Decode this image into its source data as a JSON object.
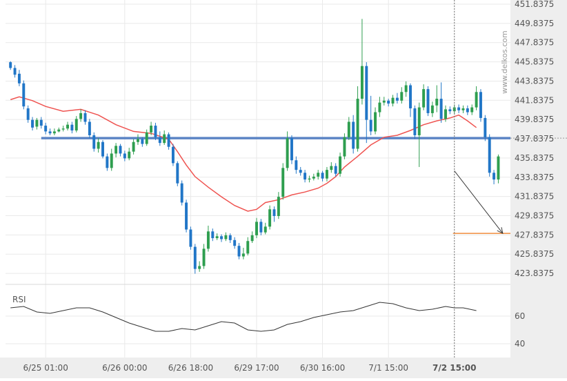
{
  "chart_data": {
    "type": "candlestick",
    "watermark": "www.delkos.com",
    "colors": {
      "up": "#2e9e4f",
      "down": "#2176c7",
      "ma": "#ef5350",
      "level": "#5b84c4",
      "target": "#f08c3c",
      "arrow": "#3a3a3a",
      "rsi": "#333333",
      "grid": "#e9e9e9",
      "axis_text": "#555555",
      "plot_bg": "#ffffff",
      "axis_bg": "#eeeeee"
    },
    "price_axis": {
      "min": 422.8375,
      "max": 451.8375,
      "ticks": [
        "451.8375",
        "449.8375",
        "447.8375",
        "445.8375",
        "443.8375",
        "441.8375",
        "439.8375",
        "437.8375",
        "435.8375",
        "433.8375",
        "431.8375",
        "429.8375",
        "427.8375",
        "425.8375",
        "423.8375"
      ]
    },
    "time_axis": {
      "labels": [
        "6/25 01:00",
        "6/26 00:00",
        "6/26 18:00",
        "6/29 17:00",
        "6/30 16:00",
        "7/1 15:00",
        "7/2 15:00"
      ],
      "label_index": [
        8,
        26,
        41,
        56,
        71,
        86,
        101
      ]
    },
    "support_level": 437.9,
    "target_level": 428.0,
    "forecast_arrow": {
      "from_index": 101,
      "from_price": 434.5,
      "to_index": 112,
      "to_price": 428.0
    },
    "current_index": 101,
    "candles": [
      [
        445.8,
        445.2,
        445.9,
        445.0
      ],
      [
        445.2,
        444.5,
        445.5,
        444.2
      ],
      [
        444.6,
        443.6,
        445.0,
        443.3
      ],
      [
        443.6,
        441.2,
        443.9,
        440.9
      ],
      [
        441.0,
        439.8,
        441.3,
        439.5
      ],
      [
        439.8,
        439.0,
        440.1,
        438.7
      ],
      [
        439.1,
        439.8,
        440.0,
        438.8
      ],
      [
        439.8,
        439.2,
        440.1,
        438.9
      ],
      [
        439.2,
        438.6,
        439.5,
        438.3
      ],
      [
        438.6,
        438.4,
        438.9,
        438.2
      ],
      [
        438.4,
        438.6,
        438.9,
        438.2
      ],
      [
        438.6,
        438.8,
        439.0,
        438.5
      ],
      [
        438.8,
        438.9,
        439.2,
        438.6
      ],
      [
        438.9,
        439.3,
        439.6,
        438.7
      ],
      [
        439.3,
        438.7,
        439.6,
        438.4
      ],
      [
        438.7,
        439.9,
        440.2,
        438.5
      ],
      [
        439.9,
        440.5,
        440.9,
        439.6
      ],
      [
        440.5,
        439.6,
        440.8,
        439.3
      ],
      [
        439.6,
        438.2,
        439.9,
        437.9
      ],
      [
        438.2,
        436.8,
        438.5,
        436.5
      ],
      [
        436.8,
        437.5,
        437.9,
        436.4
      ],
      [
        437.5,
        436.0,
        437.7,
        435.8
      ],
      [
        436.0,
        434.8,
        436.3,
        434.5
      ],
      [
        434.8,
        436.3,
        436.8,
        434.5
      ],
      [
        436.3,
        437.1,
        437.4,
        435.9
      ],
      [
        437.1,
        436.3,
        437.3,
        436.0
      ],
      [
        436.3,
        435.8,
        436.6,
        435.5
      ],
      [
        435.8,
        436.5,
        436.9,
        435.6
      ],
      [
        436.5,
        437.5,
        437.8,
        436.2
      ],
      [
        437.5,
        437.8,
        438.3,
        437.2
      ],
      [
        437.8,
        437.3,
        438.0,
        437.0
      ],
      [
        437.3,
        438.5,
        438.8,
        437.1
      ],
      [
        438.5,
        439.2,
        439.6,
        438.2
      ],
      [
        439.2,
        438.0,
        439.5,
        437.7
      ],
      [
        438.0,
        437.4,
        438.6,
        437.1
      ],
      [
        437.4,
        438.3,
        438.7,
        437.2
      ],
      [
        438.3,
        437.0,
        438.5,
        436.7
      ],
      [
        437.0,
        435.3,
        437.3,
        435.0
      ],
      [
        435.3,
        433.2,
        435.5,
        432.9
      ],
      [
        433.2,
        431.2,
        433.5,
        430.9
      ],
      [
        431.2,
        428.4,
        431.5,
        428.1
      ],
      [
        428.4,
        426.6,
        428.7,
        426.3
      ],
      [
        426.6,
        424.3,
        426.9,
        423.8
      ],
      [
        424.3,
        424.6,
        425.1,
        424.0
      ],
      [
        424.6,
        426.4,
        426.9,
        424.3
      ],
      [
        426.4,
        428.2,
        428.8,
        426.1
      ],
      [
        428.2,
        427.5,
        428.5,
        427.2
      ],
      [
        427.5,
        427.7,
        428.0,
        427.3
      ],
      [
        427.7,
        427.4,
        427.9,
        427.1
      ],
      [
        427.4,
        427.8,
        428.1,
        427.2
      ],
      [
        427.8,
        427.3,
        428.0,
        427.0
      ],
      [
        427.3,
        426.7,
        427.6,
        426.4
      ],
      [
        426.7,
        425.6,
        427.0,
        425.3
      ],
      [
        425.6,
        425.9,
        426.5,
        425.3
      ],
      [
        425.9,
        427.2,
        427.6,
        425.7
      ],
      [
        427.2,
        427.8,
        428.2,
        427.0
      ],
      [
        427.8,
        429.2,
        429.6,
        427.5
      ],
      [
        429.2,
        428.1,
        429.5,
        427.8
      ],
      [
        428.1,
        428.7,
        429.1,
        427.9
      ],
      [
        428.7,
        430.5,
        430.9,
        428.4
      ],
      [
        430.5,
        429.8,
        430.8,
        429.2
      ],
      [
        429.8,
        431.8,
        432.3,
        429.5
      ],
      [
        431.8,
        434.8,
        435.3,
        431.5
      ],
      [
        434.8,
        437.9,
        438.6,
        434.5
      ],
      [
        437.9,
        435.6,
        438.2,
        435.2
      ],
      [
        435.6,
        434.6,
        436.0,
        434.2
      ],
      [
        434.6,
        434.3,
        434.9,
        434.0
      ],
      [
        434.3,
        433.6,
        434.6,
        433.3
      ],
      [
        433.6,
        433.7,
        434.0,
        433.3
      ],
      [
        433.7,
        433.9,
        434.2,
        433.5
      ],
      [
        433.9,
        434.3,
        434.6,
        433.6
      ],
      [
        434.3,
        433.7,
        434.5,
        433.4
      ],
      [
        433.7,
        434.6,
        434.9,
        433.4
      ],
      [
        434.6,
        435.0,
        435.4,
        434.3
      ],
      [
        435.0,
        434.2,
        435.3,
        433.9
      ],
      [
        434.2,
        436.0,
        436.4,
        433.9
      ],
      [
        436.0,
        438.0,
        438.4,
        435.7
      ],
      [
        438.0,
        439.6,
        440.1,
        437.7
      ],
      [
        439.6,
        436.8,
        440.3,
        436.3
      ],
      [
        436.8,
        442.0,
        443.3,
        436.5
      ],
      [
        442.0,
        445.4,
        450.3,
        441.4
      ],
      [
        445.4,
        439.8,
        445.8,
        437.4
      ],
      [
        439.8,
        438.6,
        442.3,
        438.2
      ],
      [
        438.6,
        440.6,
        441.1,
        438.3
      ],
      [
        440.6,
        441.6,
        442.2,
        440.1
      ],
      [
        441.6,
        441.8,
        442.2,
        441.3
      ],
      [
        441.8,
        441.5,
        442.0,
        441.2
      ],
      [
        441.5,
        442.1,
        442.4,
        441.2
      ],
      [
        442.1,
        441.8,
        442.6,
        441.5
      ],
      [
        441.8,
        442.7,
        443.2,
        441.5
      ],
      [
        442.7,
        443.4,
        443.8,
        442.2
      ],
      [
        443.4,
        441.0,
        443.6,
        440.1
      ],
      [
        441.0,
        438.2,
        441.3,
        437.8
      ],
      [
        438.2,
        441.1,
        441.6,
        434.9
      ],
      [
        441.1,
        443.0,
        443.5,
        440.8
      ],
      [
        443.0,
        440.5,
        443.3,
        440.2
      ],
      [
        440.5,
        441.3,
        441.7,
        440.1
      ],
      [
        441.3,
        442.0,
        443.4,
        440.6
      ],
      [
        442.0,
        439.9,
        443.7,
        439.5
      ],
      [
        439.9,
        440.9,
        441.3,
        439.6
      ],
      [
        440.9,
        440.7,
        441.2,
        440.4
      ],
      [
        440.7,
        441.1,
        441.4,
        440.4
      ],
      [
        441.1,
        440.8,
        441.4,
        440.5
      ],
      [
        440.8,
        441.0,
        441.3,
        440.5
      ],
      [
        441.0,
        440.6,
        441.3,
        440.3
      ],
      [
        440.6,
        441.1,
        441.4,
        440.3
      ],
      [
        441.1,
        442.7,
        443.3,
        440.8
      ],
      [
        442.7,
        440.0,
        443.0,
        439.6
      ],
      [
        440.0,
        438.0,
        440.3,
        437.6
      ],
      [
        438.0,
        434.3,
        438.3,
        433.9
      ],
      [
        434.3,
        433.6,
        434.6,
        433.1
      ],
      [
        433.6,
        436.0,
        436.2,
        433.2
      ]
    ],
    "ma_line": [
      [
        0,
        441.9
      ],
      [
        2,
        442.2
      ],
      [
        5,
        441.8
      ],
      [
        8,
        441.2
      ],
      [
        12,
        440.7
      ],
      [
        16,
        440.9
      ],
      [
        20,
        440.3
      ],
      [
        24,
        439.3
      ],
      [
        28,
        438.6
      ],
      [
        32,
        438.4
      ],
      [
        36,
        437.8
      ],
      [
        38,
        436.5
      ],
      [
        40,
        435.1
      ],
      [
        42,
        433.9
      ],
      [
        45,
        432.8
      ],
      [
        48,
        431.8
      ],
      [
        51,
        430.9
      ],
      [
        54,
        430.3
      ],
      [
        56,
        430.5
      ],
      [
        58,
        431.2
      ],
      [
        61,
        431.5
      ],
      [
        64,
        432.0
      ],
      [
        67,
        432.3
      ],
      [
        70,
        432.7
      ],
      [
        72,
        433.2
      ],
      [
        74,
        433.9
      ],
      [
        76,
        434.9
      ],
      [
        79,
        436.0
      ],
      [
        82,
        437.2
      ],
      [
        85,
        438.0
      ],
      [
        88,
        438.2
      ],
      [
        91,
        438.7
      ],
      [
        94,
        439.3
      ],
      [
        97,
        439.7
      ],
      [
        100,
        440.0
      ],
      [
        102,
        440.3
      ],
      [
        104,
        439.7
      ],
      [
        106,
        439.0
      ]
    ],
    "rsi": {
      "label": "RSI",
      "ticks": [
        60,
        40
      ],
      "min": 30,
      "max": 80,
      "values": [
        [
          0,
          66
        ],
        [
          3,
          67
        ],
        [
          6,
          63
        ],
        [
          9,
          62
        ],
        [
          12,
          64
        ],
        [
          15,
          66
        ],
        [
          18,
          66
        ],
        [
          21,
          63
        ],
        [
          24,
          59
        ],
        [
          27,
          55
        ],
        [
          30,
          52
        ],
        [
          33,
          49
        ],
        [
          36,
          49
        ],
        [
          39,
          51
        ],
        [
          42,
          50
        ],
        [
          45,
          53
        ],
        [
          48,
          56
        ],
        [
          51,
          55
        ],
        [
          54,
          50
        ],
        [
          57,
          49
        ],
        [
          60,
          50
        ],
        [
          63,
          54
        ],
        [
          66,
          56
        ],
        [
          69,
          59
        ],
        [
          72,
          61
        ],
        [
          75,
          63
        ],
        [
          78,
          64
        ],
        [
          81,
          67
        ],
        [
          84,
          70
        ],
        [
          87,
          69
        ],
        [
          90,
          66
        ],
        [
          93,
          64
        ],
        [
          96,
          65
        ],
        [
          99,
          67
        ],
        [
          101,
          66
        ],
        [
          103,
          66
        ],
        [
          106,
          64
        ]
      ]
    }
  }
}
